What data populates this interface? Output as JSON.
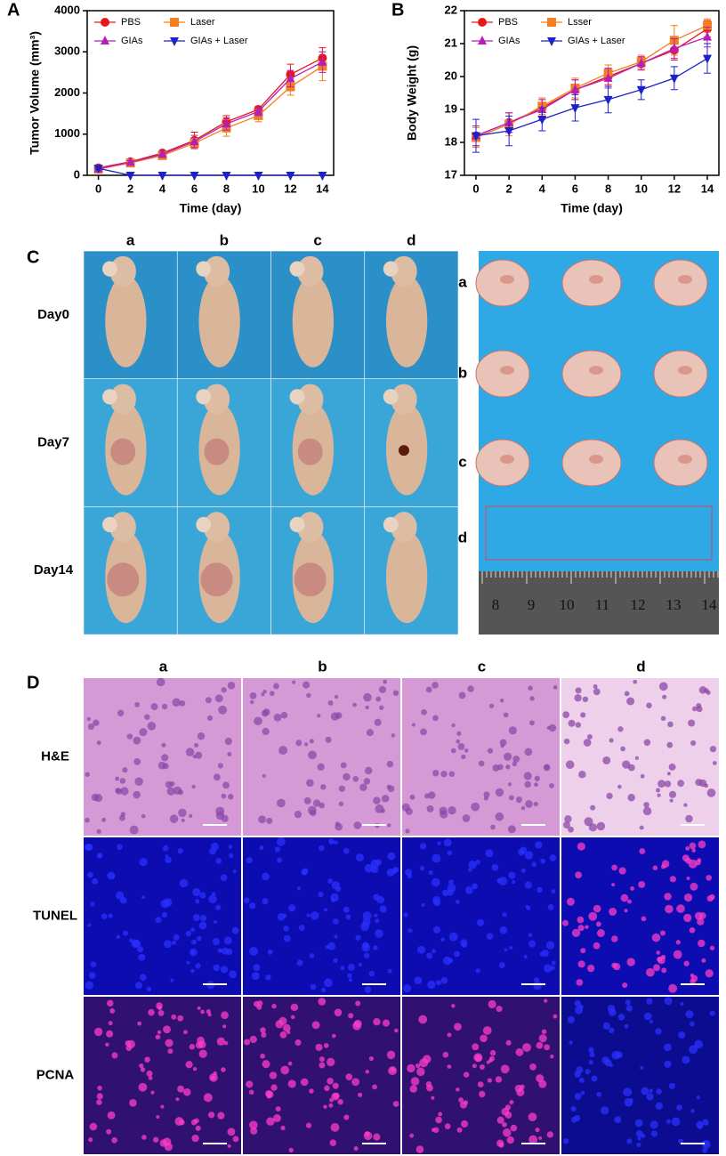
{
  "chart_data": [
    {
      "type": "line",
      "panel": "A",
      "x_label": "Time (day)",
      "y_label": "Tumor Volume (mm³)",
      "x": [
        0,
        2,
        4,
        6,
        8,
        10,
        12,
        14
      ],
      "xlim": [
        -0.7,
        14.7
      ],
      "xticks": [
        0,
        2,
        4,
        6,
        8,
        10,
        12,
        14
      ],
      "ylim": [
        0,
        4000
      ],
      "yticks": [
        0,
        1000,
        2000,
        3000,
        4000
      ],
      "legend": "upper left",
      "series": [
        {
          "name": "PBS",
          "color": "#e8161b",
          "marker": "circle",
          "values": [
            180,
            330,
            540,
            850,
            1300,
            1600,
            2450,
            2850
          ],
          "errors": [
            40,
            50,
            60,
            200,
            150,
            80,
            250,
            250
          ]
        },
        {
          "name": "Laser",
          "color": "#f47f20",
          "marker": "square",
          "values": [
            150,
            300,
            480,
            780,
            1150,
            1450,
            2150,
            2650
          ],
          "errors": [
            30,
            40,
            50,
            120,
            200,
            150,
            200,
            350
          ]
        },
        {
          "name": "GIAs",
          "color": "#b41fb8",
          "marker": "triangle-up",
          "values": [
            160,
            320,
            510,
            820,
            1250,
            1550,
            2350,
            2750
          ],
          "errors": [
            30,
            40,
            50,
            150,
            150,
            100,
            200,
            250
          ]
        },
        {
          "name": "GIAs + Laser",
          "color": "#1c22c8",
          "marker": "triangle-down",
          "values": [
            170,
            0,
            0,
            0,
            0,
            0,
            0,
            0
          ],
          "errors": [
            20,
            0,
            0,
            0,
            0,
            0,
            0,
            0
          ]
        }
      ]
    },
    {
      "type": "line",
      "panel": "B",
      "x_label": "Time (day)",
      "y_label": "Body Weight (g)",
      "x": [
        0,
        2,
        4,
        6,
        8,
        10,
        12,
        14
      ],
      "xlim": [
        -0.7,
        14.7
      ],
      "xticks": [
        0,
        2,
        4,
        6,
        8,
        10,
        12,
        14
      ],
      "ylim": [
        17,
        22
      ],
      "yticks": [
        17,
        18,
        19,
        20,
        21,
        22
      ],
      "legend": "upper left",
      "series": [
        {
          "name": "PBS",
          "color": "#e8161b",
          "marker": "circle",
          "values": [
            18.2,
            18.6,
            19.05,
            19.6,
            20.0,
            20.4,
            20.8,
            21.45
          ],
          "errors": [
            0.3,
            0.3,
            0.25,
            0.3,
            0.25,
            0.2,
            0.3,
            0.25
          ]
        },
        {
          "name": "Lsser",
          "color": "#f47f20",
          "marker": "square",
          "values": [
            18.15,
            18.55,
            19.1,
            19.65,
            20.1,
            20.45,
            21.1,
            21.55
          ],
          "errors": [
            0.3,
            0.35,
            0.25,
            0.3,
            0.25,
            0.2,
            0.45,
            0.2
          ]
        },
        {
          "name": "GIAs",
          "color": "#b41fb8",
          "marker": "triangle-up",
          "values": [
            18.2,
            18.6,
            19.0,
            19.6,
            19.95,
            20.4,
            20.85,
            21.2
          ],
          "errors": [
            0.3,
            0.3,
            0.3,
            0.3,
            0.3,
            0.2,
            0.3,
            0.3
          ]
        },
        {
          "name": "GIAs + Laser",
          "color": "#1c22c8",
          "marker": "triangle-down",
          "values": [
            18.2,
            18.35,
            18.7,
            19.05,
            19.3,
            19.6,
            19.95,
            20.55
          ],
          "errors": [
            0.5,
            0.45,
            0.35,
            0.4,
            0.4,
            0.3,
            0.35,
            0.45
          ]
        }
      ]
    }
  ],
  "panel_c": {
    "label": "C",
    "columns": [
      "a",
      "b",
      "c",
      "d"
    ],
    "rows": [
      "Day0",
      "Day7",
      "Day14"
    ],
    "tumor_rows": [
      "a",
      "b",
      "c",
      "d"
    ],
    "ruler": [
      "8",
      "9",
      "10",
      "11",
      "12",
      "13",
      "14"
    ]
  },
  "panel_d": {
    "label": "D",
    "columns": [
      "a",
      "b",
      "c",
      "d"
    ],
    "rows": [
      "H&E",
      "TUNEL",
      "PCNA"
    ]
  }
}
